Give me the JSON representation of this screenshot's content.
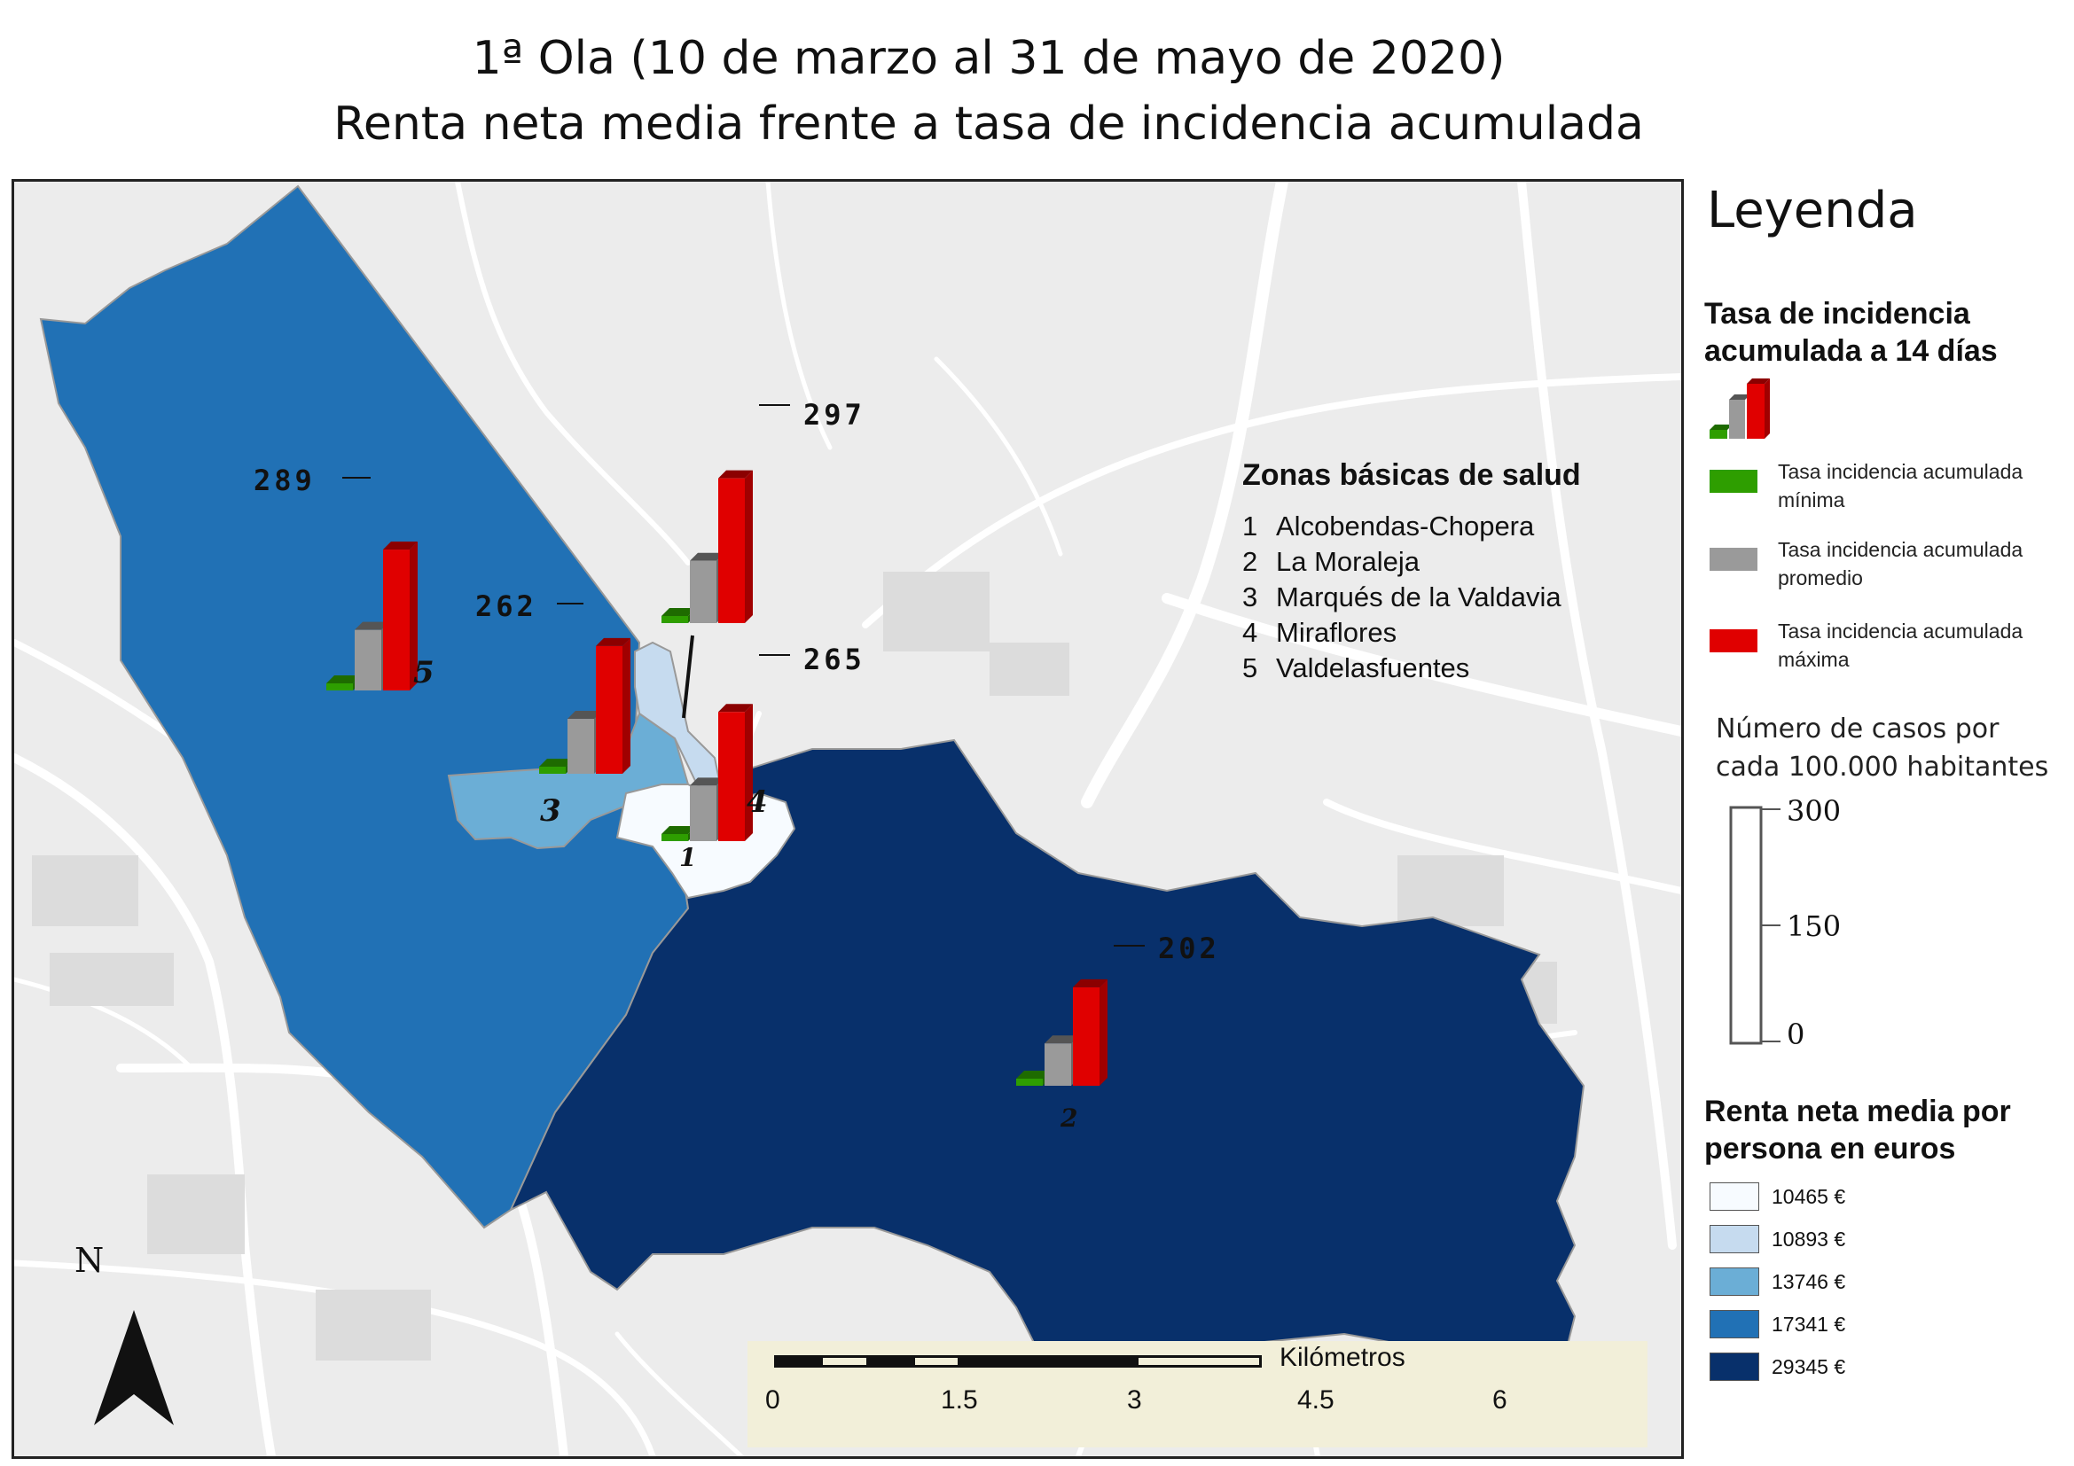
{
  "title": {
    "line1": "1ª Ola (10 de marzo al 31 de mayo de 2020)",
    "line2": "Renta neta media frente a tasa de incidencia acumulada"
  },
  "zonas": {
    "title": "Zonas básicas de salud",
    "items": [
      {
        "num": "1",
        "name": "Alcobendas-Chopera"
      },
      {
        "num": "2",
        "name": "La Moraleja"
      },
      {
        "num": "3",
        "name": "Marqués de la Valdavia"
      },
      {
        "num": "4",
        "name": "Miraflores"
      },
      {
        "num": "5",
        "name": "Valdelasfuentes"
      }
    ]
  },
  "max_labels": {
    "z5": "289",
    "z1": "297",
    "z3": "262",
    "z4": "265",
    "z2": "202"
  },
  "zone_numbers": {
    "z1": "1",
    "z2": "2",
    "z3": "3",
    "z4": "4",
    "z5": "5"
  },
  "scale": {
    "unit": "Kilómetros",
    "ticks": [
      "0",
      "1.5",
      "3",
      "4.5",
      "6"
    ]
  },
  "north": "N",
  "legend": {
    "title": "Leyenda",
    "incidence_heading_1": "Tasa de incidencia",
    "incidence_heading_2": "acumulada a 14 días",
    "min_label_1": "Tasa incidencia acumulada",
    "min_label_2": "mínima",
    "avg_label_1": "Tasa incidencia acumulada",
    "avg_label_2": "promedio",
    "max_label_1": "Tasa incidencia acumulada",
    "max_label_2": "máxima",
    "cases_1": "Número de casos por",
    "cases_2": "cada 100.000 habitantes",
    "scale_ticks": [
      "300",
      "150",
      "0"
    ],
    "income_heading_1": "Renta neta media por",
    "income_heading_2": "persona en euros",
    "income_classes": [
      {
        "label": "10465 €",
        "color": "#f7fbff"
      },
      {
        "label": "10893 €",
        "color": "#c6dbef"
      },
      {
        "label": "13746 €",
        "color": "#6baed6"
      },
      {
        "label": "17341 €",
        "color": "#2171b5"
      },
      {
        "label": "29345 €",
        "color": "#08306b"
      }
    ]
  },
  "colors": {
    "min_bar": "#2e9e00",
    "avg_bar": "#9a9a9a",
    "max_bar": "#e00000",
    "basemap": "#ececec",
    "roads": "#ffffff"
  }
}
